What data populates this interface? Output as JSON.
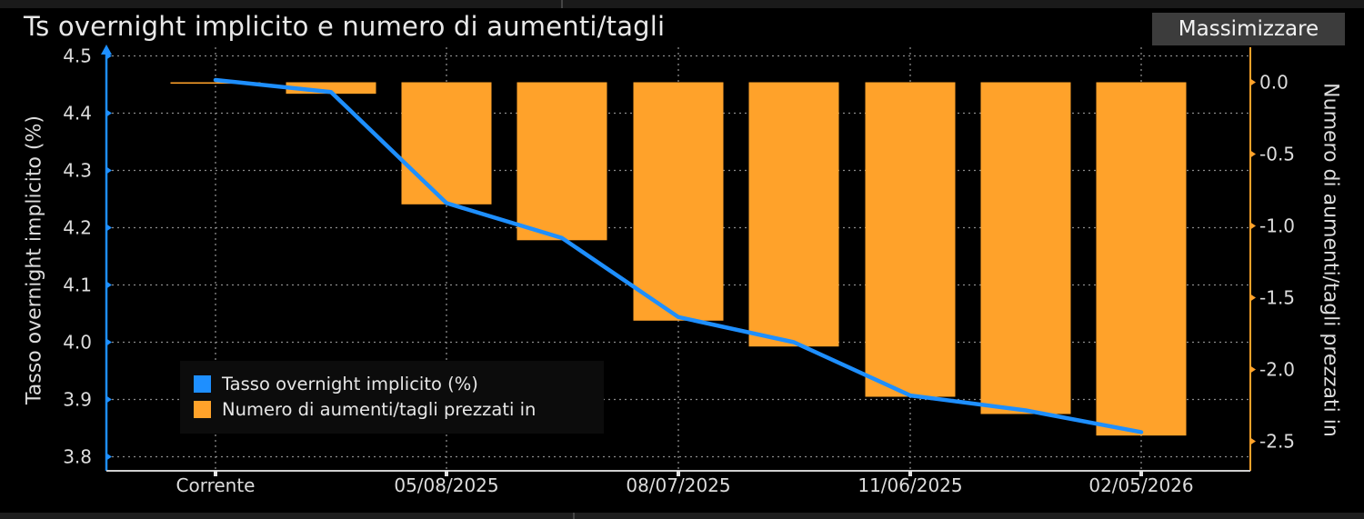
{
  "header": {
    "title": "Ts overnight implicito e numero di aumenti/tagli",
    "maximize_label": "Massimizzare"
  },
  "colors": {
    "background": "#000000",
    "line": "#1e8fff",
    "bar": "#ffa22a",
    "grid": "#8a8a8a"
  },
  "chart_data": {
    "type": "bar+line",
    "title": "Ts overnight implicito e numero di aumenti/tagli",
    "categories": [
      "Corrente",
      "",
      "05/08/2025",
      "",
      "08/07/2025",
      "",
      "11/06/2025",
      "",
      "02/05/2026"
    ],
    "x_tick_labels": [
      "Corrente",
      "05/08/2025",
      "08/07/2025",
      "11/06/2025",
      "02/05/2026"
    ],
    "left_axis": {
      "label": "Tasso overnight implicito (%)",
      "ticks": [
        "4.5",
        "4.4",
        "4.3",
        "4.2",
        "4.1",
        "4.0",
        "3.9",
        "3.8"
      ],
      "range": [
        3.78,
        4.52
      ]
    },
    "right_axis": {
      "label": "Numero di aumenti/tagli prezzati in",
      "ticks": [
        "0.0",
        "-0.5",
        "-1.0",
        "-1.5",
        "-2.0",
        "-2.5"
      ],
      "range": [
        -2.6,
        0.22
      ]
    },
    "series": [
      {
        "name": "Tasso overnight implicito (%)",
        "type": "line",
        "axis": "left",
        "values": [
          4.458,
          4.437,
          4.243,
          4.182,
          4.044,
          4.0,
          3.907,
          3.881,
          3.843
        ]
      },
      {
        "name": "Numero di aumenti/tagli prezzati in",
        "type": "bar",
        "axis": "right",
        "values": [
          0.0,
          -0.08,
          -0.85,
          -1.1,
          -1.66,
          -1.84,
          -2.19,
          -2.31,
          -2.46
        ]
      }
    ],
    "grid": true,
    "legend_position": "bottom-left"
  },
  "legend": {
    "items": [
      {
        "label": "Tasso overnight implicito (%)",
        "color": "#1e8fff"
      },
      {
        "label": "Numero di aumenti/tagli prezzati in",
        "color": "#ffa22a"
      }
    ]
  }
}
